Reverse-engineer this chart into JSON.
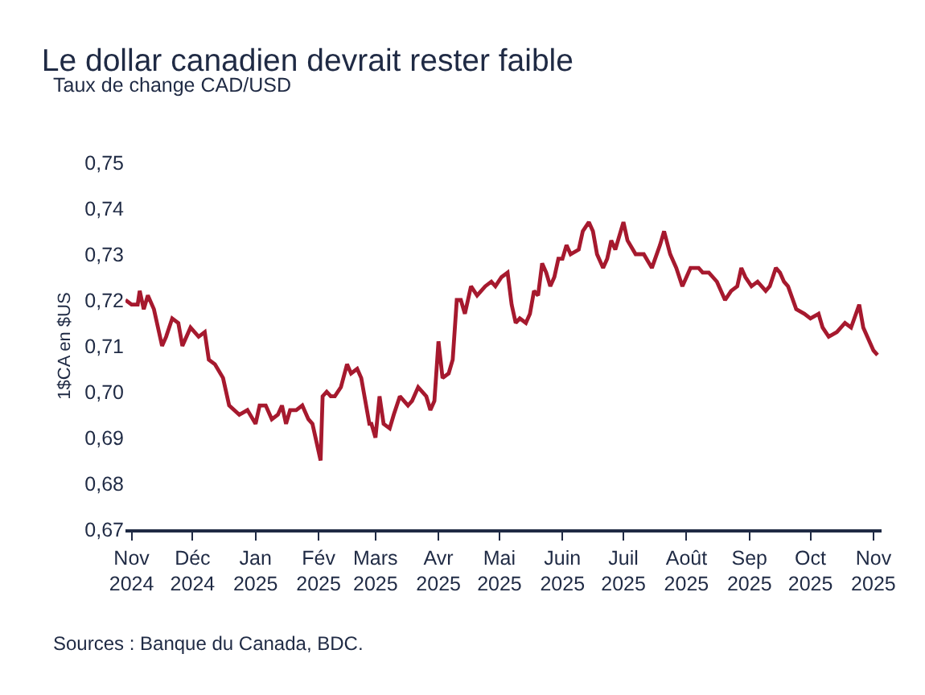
{
  "chart_data": {
    "type": "line",
    "title": "Le dollar canadien devrait rester faible",
    "subtitle": "Taux de change CAD/USD",
    "ylabel": "1$CA en $US",
    "annotations": [
      "Sources : Banque du Canada, BDC."
    ],
    "x": [
      "2024-10-29",
      "2024-11-01",
      "2024-11-04",
      "2024-11-05",
      "2024-11-07",
      "2024-11-09",
      "2024-11-12",
      "2024-11-16",
      "2024-11-18",
      "2024-11-21",
      "2024-11-24",
      "2024-11-26",
      "2024-11-30",
      "2024-12-04",
      "2024-12-07",
      "2024-12-09",
      "2024-12-12",
      "2024-12-16",
      "2024-12-19",
      "2024-12-24",
      "2024-12-28",
      "2025-01-01",
      "2025-01-03",
      "2025-01-06",
      "2025-01-09",
      "2025-01-12",
      "2025-01-14",
      "2025-01-16",
      "2025-01-18",
      "2025-01-21",
      "2025-01-24",
      "2025-01-27",
      "2025-01-29",
      "2025-02-02",
      "2025-02-03",
      "2025-02-05",
      "2025-02-07",
      "2025-02-09",
      "2025-02-12",
      "2025-02-15",
      "2025-02-17",
      "2025-02-20",
      "2025-02-22",
      "2025-02-26",
      "2025-02-27",
      "2025-03-01",
      "2025-03-03",
      "2025-03-05",
      "2025-03-08",
      "2025-03-10",
      "2025-03-13",
      "2025-03-17",
      "2025-03-19",
      "2025-03-22",
      "2025-03-26",
      "2025-03-28",
      "2025-03-30",
      "2025-04-01",
      "2025-04-03",
      "2025-04-06",
      "2025-04-08",
      "2025-04-10",
      "2025-04-12",
      "2025-04-14",
      "2025-04-17",
      "2025-04-20",
      "2025-04-24",
      "2025-04-27",
      "2025-04-29",
      "2025-05-02",
      "2025-05-05",
      "2025-05-07",
      "2025-05-09",
      "2025-05-11",
      "2025-05-14",
      "2025-05-16",
      "2025-05-18",
      "2025-05-20",
      "2025-05-22",
      "2025-05-24",
      "2025-05-26",
      "2025-05-28",
      "2025-05-30",
      "2025-06-01",
      "2025-06-03",
      "2025-06-05",
      "2025-06-09",
      "2025-06-11",
      "2025-06-14",
      "2025-06-16",
      "2025-06-18",
      "2025-06-21",
      "2025-06-23",
      "2025-06-25",
      "2025-06-27",
      "2025-07-01",
      "2025-07-03",
      "2025-07-07",
      "2025-07-11",
      "2025-07-15",
      "2025-07-19",
      "2025-07-21",
      "2025-07-24",
      "2025-07-27",
      "2025-07-30",
      "2025-08-01",
      "2025-08-03",
      "2025-08-07",
      "2025-08-09",
      "2025-08-12",
      "2025-08-14",
      "2025-08-16",
      "2025-08-20",
      "2025-08-23",
      "2025-08-26",
      "2025-08-28",
      "2025-08-30",
      "2025-09-02",
      "2025-09-05",
      "2025-09-09",
      "2025-09-11",
      "2025-09-14",
      "2025-09-16",
      "2025-09-18",
      "2025-09-20",
      "2025-09-24",
      "2025-09-28",
      "2025-10-01",
      "2025-10-05",
      "2025-10-07",
      "2025-10-10",
      "2025-10-14",
      "2025-10-18",
      "2025-10-21",
      "2025-10-25",
      "2025-10-27",
      "2025-11-01",
      "2025-11-03"
    ],
    "series": [
      {
        "color": "#a6192e",
        "values": [
          0.72,
          0.719,
          0.719,
          0.722,
          0.718,
          0.721,
          0.718,
          0.71,
          0.712,
          0.716,
          0.715,
          0.71,
          0.714,
          0.712,
          0.713,
          0.707,
          0.706,
          0.703,
          0.697,
          0.695,
          0.696,
          0.693,
          0.697,
          0.697,
          0.694,
          0.695,
          0.697,
          0.693,
          0.696,
          0.696,
          0.697,
          0.694,
          0.693,
          0.685,
          0.699,
          0.7,
          0.699,
          0.699,
          0.701,
          0.706,
          0.704,
          0.705,
          0.703,
          0.693,
          0.693,
          0.69,
          0.699,
          0.693,
          0.692,
          0.695,
          0.699,
          0.697,
          0.698,
          0.701,
          0.699,
          0.696,
          0.698,
          0.711,
          0.703,
          0.704,
          0.707,
          0.72,
          0.72,
          0.717,
          0.723,
          0.721,
          0.723,
          0.724,
          0.723,
          0.725,
          0.726,
          0.719,
          0.715,
          0.716,
          0.715,
          0.717,
          0.722,
          0.721,
          0.728,
          0.726,
          0.723,
          0.725,
          0.729,
          0.729,
          0.732,
          0.73,
          0.731,
          0.735,
          0.737,
          0.735,
          0.73,
          0.727,
          0.729,
          0.733,
          0.731,
          0.737,
          0.733,
          0.73,
          0.73,
          0.727,
          0.732,
          0.735,
          0.73,
          0.727,
          0.723,
          0.725,
          0.727,
          0.727,
          0.726,
          0.726,
          0.725,
          0.724,
          0.72,
          0.722,
          0.723,
          0.727,
          0.725,
          0.723,
          0.724,
          0.722,
          0.723,
          0.727,
          0.726,
          0.724,
          0.723,
          0.718,
          0.717,
          0.716,
          0.717,
          0.714,
          0.712,
          0.713,
          0.715,
          0.714,
          0.719,
          0.714,
          0.709,
          0.708
        ]
      }
    ],
    "xlim": [
      "2024-10-29",
      "2025-11-05"
    ],
    "xticks": [
      {
        "value": "2024-11-01",
        "label": "Nov\n2024"
      },
      {
        "value": "2024-12-01",
        "label": "Déc\n2024"
      },
      {
        "value": "2025-01-01",
        "label": "Jan\n2025"
      },
      {
        "value": "2025-02-01",
        "label": "Fév\n2025"
      },
      {
        "value": "2025-03-01",
        "label": "Mars\n2025"
      },
      {
        "value": "2025-04-01",
        "label": "Avr\n2025"
      },
      {
        "value": "2025-05-01",
        "label": "Mai\n2025"
      },
      {
        "value": "2025-06-01",
        "label": "Juin\n2025"
      },
      {
        "value": "2025-07-01",
        "label": "Juil\n2025"
      },
      {
        "value": "2025-08-01",
        "label": "Août\n2025"
      },
      {
        "value": "2025-09-01",
        "label": "Sep\n2025"
      },
      {
        "value": "2025-10-01",
        "label": "Oct\n2025"
      },
      {
        "value": "2025-11-01",
        "label": "Nov\n2025"
      }
    ],
    "ylim": [
      0.67,
      0.75
    ],
    "yticks": [
      {
        "value": 0.67,
        "label": "0,67"
      },
      {
        "value": 0.68,
        "label": "0,68"
      },
      {
        "value": 0.69,
        "label": "0,69"
      },
      {
        "value": 0.7,
        "label": "0,70"
      },
      {
        "value": 0.71,
        "label": "0,71"
      },
      {
        "value": 0.72,
        "label": "0,72"
      },
      {
        "value": 0.73,
        "label": "0,73"
      },
      {
        "value": 0.74,
        "label": "0,74"
      },
      {
        "value": 0.75,
        "label": "0,75"
      }
    ],
    "marker": "none",
    "line_style": "solid"
  }
}
